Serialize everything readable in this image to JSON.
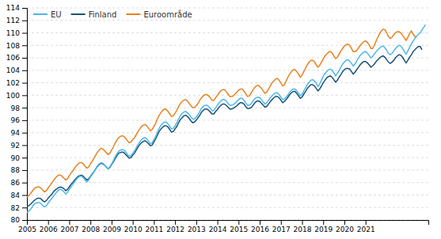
{
  "chart_data": {
    "type": "line",
    "x": [
      2005,
      2005.0833333333333,
      2005.1666666666667,
      2005.25,
      2005.3333333333333,
      2005.4166666666667,
      2005.5,
      2005.5833333333333,
      2005.6666666666667,
      2005.75,
      2005.8333333333333,
      2005.9166666666667,
      2006,
      2006.0833333333333,
      2006.1666666666667,
      2006.25,
      2006.3333333333333,
      2006.4166666666667,
      2006.5,
      2006.5833333333333,
      2006.6666666666667,
      2006.75,
      2006.8333333333333,
      2006.9166666666667,
      2007,
      2007.0833333333333,
      2007.1666666666667,
      2007.25,
      2007.3333333333333,
      2007.4166666666667,
      2007.5,
      2007.5833333333333,
      2007.6666666666667,
      2007.75,
      2007.8333333333333,
      2007.9166666666667,
      2008,
      2008.0833333333333,
      2008.1666666666667,
      2008.25,
      2008.3333333333333,
      2008.4166666666667,
      2008.5,
      2008.5833333333333,
      2008.6666666666667,
      2008.75,
      2008.8333333333333,
      2008.9166666666667,
      2009,
      2009.0833333333333,
      2009.1666666666667,
      2009.25,
      2009.3333333333333,
      2009.4166666666667,
      2009.5,
      2009.5833333333333,
      2009.6666666666667,
      2009.75,
      2009.8333333333333,
      2009.9166666666667,
      2010,
      2010.0833333333333,
      2010.1666666666667,
      2010.25,
      2010.3333333333333,
      2010.4166666666667,
      2010.5,
      2010.5833333333333,
      2010.6666666666667,
      2010.75,
      2010.8333333333333,
      2010.9166666666667,
      2011,
      2011.0833333333333,
      2011.1666666666667,
      2011.25,
      2011.3333333333333,
      2011.4166666666667,
      2011.5,
      2011.5833333333333,
      2011.6666666666667,
      2011.75,
      2011.8333333333333,
      2011.9166666666667,
      2012,
      2012.0833333333333,
      2012.1666666666667,
      2012.25,
      2012.3333333333333,
      2012.4166666666667,
      2012.5,
      2012.5833333333333,
      2012.6666666666667,
      2012.75,
      2012.8333333333333,
      2012.9166666666667,
      2013,
      2013.0833333333333,
      2013.1666666666667,
      2013.25,
      2013.3333333333333,
      2013.4166666666667,
      2013.5,
      2013.5833333333333,
      2013.6666666666667,
      2013.75,
      2013.8333333333333,
      2013.9166666666667,
      2014,
      2014.0833333333333,
      2014.1666666666667,
      2014.25,
      2014.3333333333333,
      2014.4166666666667,
      2014.5,
      2014.5833333333333,
      2014.6666666666667,
      2014.75,
      2014.8333333333333,
      2014.9166666666667,
      2015,
      2015.0833333333333,
      2015.1666666666667,
      2015.25,
      2015.3333333333333,
      2015.4166666666667,
      2015.5,
      2015.5833333333333,
      2015.6666666666667,
      2015.75,
      2015.8333333333333,
      2015.9166666666667,
      2016,
      2016.0833333333333,
      2016.1666666666667,
      2016.25,
      2016.3333333333333,
      2016.4166666666667,
      2016.5,
      2016.5833333333333,
      2016.6666666666667,
      2016.75,
      2016.8333333333333,
      2016.9166666666667,
      2017,
      2017.0833333333333,
      2017.1666666666667,
      2017.25,
      2017.3333333333333,
      2017.4166666666667,
      2017.5,
      2017.5833333333333,
      2017.6666666666667,
      2017.75,
      2017.8333333333333,
      2017.9166666666667,
      2018,
      2018.0833333333333,
      2018.1666666666667,
      2018.25,
      2018.3333333333333,
      2018.4166666666667,
      2018.5,
      2018.5833333333333,
      2018.6666666666667,
      2018.75,
      2018.8333333333333,
      2018.9166666666667,
      2019,
      2019.0833333333333,
      2019.1666666666667,
      2019.25,
      2019.3333333333333,
      2019.4166666666667,
      2019.5,
      2019.5833333333333,
      2019.6666666666667,
      2019.75,
      2019.8333333333333,
      2019.9166666666667,
      2020,
      2020.0833333333333,
      2020.1666666666667,
      2020.25,
      2020.3333333333333,
      2020.4166666666667,
      2020.5,
      2020.5833333333333,
      2020.6666666666667,
      2020.75,
      2020.8333333333333,
      2020.9166666666667,
      2021,
      2021.0833333333333,
      2021.1666666666667,
      2021.25,
      2021.3333333333333,
      2021.4166666666667,
      2021.5,
      2021.5833333333333,
      2021.6666666666667,
      2021.75,
      2021.8333333333333,
      2021.9166666666667,
      2022,
      2022.0833333333333,
      2022.1666666666667,
      2022.25,
      2022.3333333333333,
      2022.4166666666667,
      2022.5,
      2022.5833333333333,
      2022.6666666666667,
      2022.75,
      2022.8333333333333,
      2022.9166666666667,
      2023,
      2023.0833333333333,
      2023.1666666666667,
      2023.25,
      2023.3333333333333,
      2023.4166666666667,
      2023.5,
      2023.5833333333333,
      2023.6666666666667,
      2023.75,
      2023.8333333333333
    ],
    "series": [
      {
        "name": "EU",
        "color": "#4db8e8",
        "values": [
          81.2,
          81.4,
          81.7,
          82.1,
          82.5,
          82.7,
          82.8,
          82.8,
          82.6,
          82.3,
          82.1,
          82.3,
          82.7,
          83.1,
          83.4,
          83.8,
          84.2,
          84.5,
          84.8,
          84.9,
          84.8,
          84.5,
          84.2,
          84.4,
          84.9,
          85.3,
          85.7,
          86.1,
          86.5,
          86.8,
          87.0,
          87.0,
          86.8,
          86.4,
          86.1,
          86.4,
          86.9,
          87.3,
          87.7,
          88.2,
          88.7,
          89.0,
          89.2,
          89.1,
          88.8,
          88.5,
          88.2,
          88.5,
          89.0,
          89.5,
          90.1,
          90.6,
          91.0,
          91.2,
          91.3,
          91.2,
          90.9,
          90.5,
          90.2,
          90.3,
          90.7,
          91.1,
          91.6,
          92.1,
          92.5,
          92.9,
          93.1,
          93.2,
          93.0,
          92.6,
          92.2,
          92.4,
          92.9,
          93.4,
          94.1,
          94.7,
          95.2,
          95.5,
          95.7,
          95.7,
          95.4,
          95.0,
          94.6,
          94.7,
          95.1,
          95.6,
          96.2,
          96.7,
          97.1,
          97.3,
          97.4,
          97.2,
          96.9,
          96.5,
          96.2,
          96.2,
          96.5,
          96.9,
          97.4,
          97.9,
          98.2,
          98.4,
          98.4,
          98.2,
          97.9,
          97.5,
          97.6,
          98.0,
          98.4,
          98.8,
          99.1,
          99.3,
          99.3,
          99.1,
          98.7,
          98.4,
          98.4,
          98.5,
          98.7,
          99.0,
          99.3,
          99.5,
          99.5,
          99.2,
          98.8,
          98.4,
          98.4,
          98.6,
          99.0,
          99.4,
          99.6,
          99.7,
          99.6,
          99.3,
          98.9,
          98.6,
          98.8,
          99.2,
          99.6,
          99.9,
          100.2,
          100.4,
          100.4,
          100.1,
          99.7,
          99.3,
          99.4,
          99.7,
          100.1,
          100.5,
          100.8,
          101.0,
          101.0,
          100.7,
          100.3,
          99.9,
          100.2,
          100.7,
          101.2,
          101.7,
          102.1,
          102.4,
          102.5,
          102.3,
          101.9,
          101.4,
          101.8,
          102.4,
          103.0,
          103.5,
          103.8,
          104.1,
          104.2,
          104.0,
          103.6,
          103.1,
          103.5,
          104.0,
          104.5,
          105.0,
          105.3,
          105.6,
          105.7,
          105.5,
          105.1,
          104.7,
          105.0,
          105.5,
          106.0,
          106.4,
          106.7,
          106.9,
          107.0,
          106.8,
          106.4,
          106.0,
          106.2,
          106.6,
          107.0,
          107.3,
          107.6,
          107.8,
          107.9,
          107.6,
          107.2,
          106.7,
          106.5,
          106.7,
          107.1,
          107.5,
          107.8,
          108.0,
          107.9,
          107.5,
          107.0,
          106.6,
          107.1,
          107.7,
          108.2,
          108.7,
          109.1,
          109.5,
          109.8,
          110.0,
          110.5,
          110.9,
          111.3
        ]
      },
      {
        "name": "Finland",
        "color": "#1a5276",
        "values": [
          82.1,
          82.3,
          82.5,
          82.8,
          83.1,
          83.3,
          83.5,
          83.5,
          83.4,
          83.1,
          82.9,
          83.1,
          83.5,
          83.8,
          84.1,
          84.5,
          84.8,
          85.0,
          85.2,
          85.3,
          85.2,
          85.0,
          84.7,
          84.9,
          85.3,
          85.7,
          86.0,
          86.4,
          86.7,
          87.0,
          87.1,
          87.2,
          87.0,
          86.7,
          86.4,
          86.6,
          87.0,
          87.4,
          87.7,
          88.2,
          88.6,
          88.9,
          89.1,
          89.0,
          88.8,
          88.5,
          88.2,
          88.4,
          88.9,
          89.3,
          89.8,
          90.3,
          90.7,
          90.8,
          90.9,
          90.8,
          90.5,
          90.2,
          89.9,
          90.0,
          90.4,
          90.7,
          91.2,
          91.7,
          92.1,
          92.4,
          92.6,
          92.7,
          92.5,
          92.2,
          91.9,
          92.0,
          92.5,
          93.0,
          93.6,
          94.2,
          94.6,
          94.9,
          95.1,
          95.1,
          94.9,
          94.5,
          94.1,
          94.2,
          94.6,
          95.0,
          95.6,
          96.1,
          96.4,
          96.7,
          96.8,
          96.6,
          96.3,
          95.9,
          95.6,
          95.7,
          96.0,
          96.4,
          96.8,
          97.3,
          97.6,
          97.8,
          97.8,
          97.6,
          97.3,
          97.0,
          97.0,
          97.4,
          97.7,
          98.1,
          98.4,
          98.6,
          98.6,
          98.4,
          98.1,
          97.8,
          97.8,
          97.9,
          98.1,
          98.3,
          98.6,
          98.8,
          98.8,
          98.6,
          98.2,
          97.9,
          97.9,
          98.0,
          98.3,
          98.7,
          99.0,
          99.1,
          99.0,
          98.7,
          98.4,
          98.1,
          98.2,
          98.6,
          99.0,
          99.3,
          99.6,
          99.8,
          99.8,
          99.6,
          99.2,
          98.8,
          99.0,
          99.3,
          99.7,
          100.1,
          100.4,
          100.6,
          100.6,
          100.3,
          99.9,
          99.5,
          99.7,
          100.2,
          100.6,
          101.1,
          101.4,
          101.7,
          101.7,
          101.5,
          101.1,
          100.7,
          101.0,
          101.5,
          102.0,
          102.4,
          102.8,
          103.0,
          103.1,
          102.9,
          102.5,
          102.1,
          102.4,
          102.9,
          103.3,
          103.8,
          104.1,
          104.3,
          104.3,
          104.2,
          103.8,
          103.4,
          103.7,
          104.1,
          104.5,
          104.9,
          105.2,
          105.4,
          105.4,
          105.2,
          104.9,
          104.5,
          104.7,
          105.0,
          105.4,
          105.7,
          106.0,
          106.2,
          106.3,
          106.1,
          105.7,
          105.3,
          105.1,
          105.3,
          105.6,
          106.0,
          106.3,
          106.5,
          106.4,
          106.1,
          105.6,
          105.2,
          105.6,
          106.1,
          106.5,
          107.0,
          107.3,
          107.6,
          107.8,
          107.8,
          107.3,
          null,
          null
        ]
      },
      {
        "name": "Euroområde",
        "color": "#e8821e",
        "values": [
          83.7,
          83.9,
          84.2,
          84.6,
          85.0,
          85.2,
          85.3,
          85.3,
          85.1,
          84.8,
          84.5,
          84.7,
          85.1,
          85.5,
          85.9,
          86.3,
          86.7,
          87.0,
          87.2,
          87.2,
          87.0,
          86.7,
          86.4,
          86.6,
          87.1,
          87.5,
          87.9,
          88.3,
          88.7,
          89.0,
          89.2,
          89.2,
          89.0,
          88.6,
          88.3,
          88.5,
          89.0,
          89.4,
          89.9,
          90.4,
          90.9,
          91.2,
          91.5,
          91.4,
          91.1,
          90.8,
          90.5,
          90.7,
          91.2,
          91.7,
          92.3,
          92.8,
          93.2,
          93.4,
          93.5,
          93.4,
          93.1,
          92.7,
          92.4,
          92.5,
          92.9,
          93.2,
          93.7,
          94.2,
          94.6,
          95.0,
          95.2,
          95.3,
          95.1,
          94.7,
          94.3,
          94.5,
          95.0,
          95.5,
          96.2,
          96.8,
          97.2,
          97.6,
          97.8,
          97.7,
          97.4,
          97.0,
          96.6,
          96.7,
          97.1,
          97.6,
          98.2,
          98.7,
          99.0,
          99.2,
          99.3,
          99.1,
          98.7,
          98.3,
          98.0,
          98.0,
          98.3,
          98.7,
          99.2,
          99.6,
          99.9,
          100.1,
          100.1,
          99.9,
          99.6,
          99.2,
          99.2,
          99.6,
          100.0,
          100.4,
          100.7,
          100.9,
          100.9,
          100.6,
          100.2,
          99.8,
          99.8,
          99.9,
          100.2,
          100.5,
          100.8,
          101.0,
          101.0,
          100.7,
          100.3,
          99.8,
          99.9,
          100.3,
          100.8,
          101.2,
          101.5,
          101.6,
          101.4,
          101.1,
          100.7,
          100.3,
          100.5,
          101.0,
          101.5,
          102.0,
          102.3,
          102.6,
          102.7,
          102.4,
          102.0,
          101.5,
          101.7,
          102.3,
          102.9,
          103.4,
          103.8,
          104.1,
          104.1,
          103.8,
          103.4,
          102.9,
          103.2,
          103.8,
          104.3,
          104.9,
          105.3,
          105.6,
          105.6,
          105.4,
          104.9,
          104.5,
          104.8,
          105.3,
          105.8,
          106.3,
          106.6,
          106.9,
          107.0,
          106.8,
          106.3,
          105.9,
          106.1,
          106.6,
          107.1,
          107.5,
          107.9,
          108.1,
          108.2,
          108.0,
          107.5,
          107.0,
          107.0,
          107.2,
          107.6,
          108.0,
          108.3,
          108.6,
          108.7,
          108.5,
          108.1,
          107.5,
          107.5,
          108.0,
          108.7,
          109.3,
          109.9,
          110.3,
          110.6,
          110.5,
          110.0,
          109.4,
          109.1,
          109.3,
          109.7,
          110.0,
          110.2,
          110.2,
          110.0,
          109.6,
          109.2,
          108.8,
          109.3,
          109.9,
          110.3,
          109.8,
          109.4,
          109.3,
          null,
          null,
          null,
          null,
          null
        ]
      }
    ],
    "xlim": [
      2005,
      2023.9666666666667
    ],
    "xticks": [
      2005,
      2006,
      2007,
      2008,
      2009,
      2010,
      2011,
      2012,
      2013,
      2014,
      2015,
      2016,
      2017,
      2018,
      2019,
      2020,
      2021
    ],
    "ylim": [
      80,
      114
    ],
    "yticks": [
      80,
      82,
      84,
      86,
      88,
      90,
      92,
      94,
      96,
      98,
      100,
      102,
      104,
      106,
      108,
      110,
      112,
      114
    ],
    "grid": true,
    "legend": "top-left"
  }
}
